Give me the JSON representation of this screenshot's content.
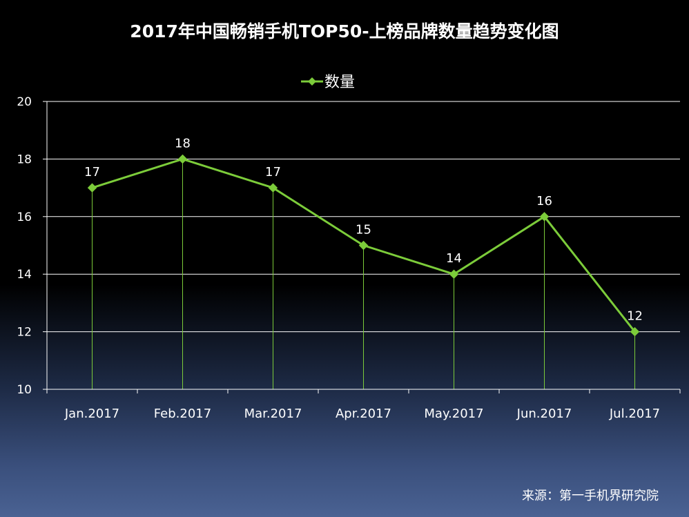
{
  "chart_data": {
    "type": "line",
    "title": "2017年中国畅销手机TOP50-上榜品牌数量趋势变化图",
    "categories": [
      "Jan.2017",
      "Feb.2017",
      "Mar.2017",
      "Apr.2017",
      "May.2017",
      "Jun.2017",
      "Jul.2017"
    ],
    "series": [
      {
        "name": "数量",
        "values": [
          17,
          18,
          17,
          15,
          14,
          16,
          12
        ],
        "color": "#7ccc3a"
      }
    ],
    "ylim": [
      10,
      20
    ],
    "yticks": [
      10,
      12,
      14,
      16,
      18,
      20
    ],
    "grid": true,
    "legend": "top-center",
    "data_labels": true,
    "drop_lines": true,
    "marker": "diamond"
  },
  "source": "来源：第一手机界研究院"
}
